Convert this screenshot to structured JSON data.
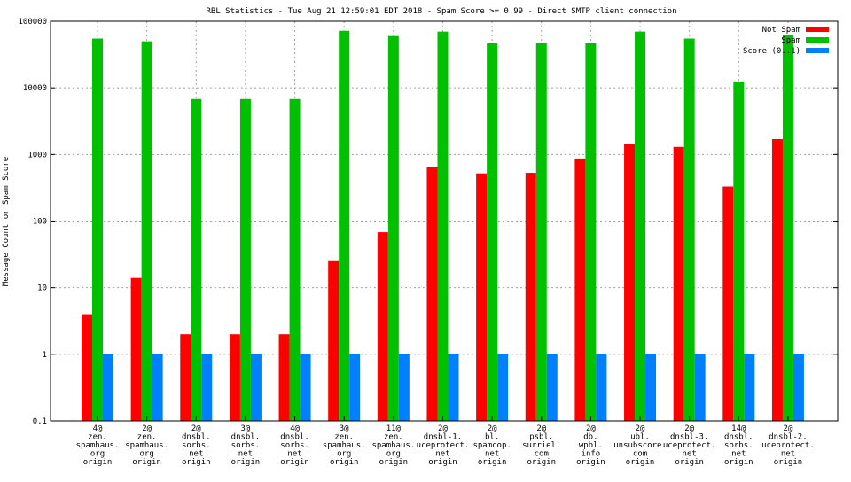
{
  "chart_data": {
    "type": "bar",
    "title": "RBL Statistics - Tue Aug 21 12:59:01 EDT 2018 - Spam Score >= 0.99 - Direct SMTP client connection",
    "xlabel": "",
    "ylabel": "Message Count or Spam Score",
    "yscale": "log",
    "ylim": [
      0.1,
      100000
    ],
    "yticks": [
      "0.1",
      "1",
      "10",
      "100",
      "1000",
      "10000",
      "100000"
    ],
    "grid": true,
    "legend_position": "top-right",
    "categories": [
      [
        "4@",
        "zen.",
        "spamhaus.",
        "org",
        "origin"
      ],
      [
        "2@",
        "zen.",
        "spamhaus.",
        "org",
        "origin"
      ],
      [
        "2@",
        "dnsbl.",
        "sorbs.",
        "net",
        "origin"
      ],
      [
        "3@",
        "dnsbl.",
        "sorbs.",
        "net",
        "origin"
      ],
      [
        "4@",
        "dnsbl.",
        "sorbs.",
        "net",
        "origin"
      ],
      [
        "3@",
        "zen.",
        "spamhaus.",
        "org",
        "origin"
      ],
      [
        "11@",
        "zen.",
        "spamhaus.",
        "org",
        "origin"
      ],
      [
        "2@",
        "dnsbl-1.",
        "uceprotect.",
        "net",
        "origin"
      ],
      [
        "2@",
        "bl.",
        "spamcop.",
        "net",
        "origin"
      ],
      [
        "2@",
        "psbl.",
        "surriel.",
        "com",
        "origin"
      ],
      [
        "2@",
        "db.",
        "wpbl.",
        "info",
        "origin"
      ],
      [
        "2@",
        "ubl.",
        "unsubscore.",
        "com",
        "origin"
      ],
      [
        "2@",
        "dnsbl-3.",
        "uceprotect.",
        "net",
        "origin"
      ],
      [
        "14@",
        "dnsbl.",
        "sorbs.",
        "net",
        "origin"
      ],
      [
        "2@",
        "dnsbl-2.",
        "uceprotect.",
        "net",
        "origin"
      ]
    ],
    "series": [
      {
        "name": "Not Spam",
        "color": "#ff0000",
        "values": [
          4,
          14,
          2,
          2,
          2,
          25,
          68,
          640,
          520,
          530,
          870,
          1420,
          1300,
          330,
          1700
        ]
      },
      {
        "name": "Spam",
        "color": "#00c000",
        "values": [
          55000,
          50000,
          6800,
          6800,
          6800,
          72000,
          60000,
          70000,
          47000,
          48000,
          48000,
          70000,
          55000,
          12500,
          62000
        ]
      },
      {
        "name": "Score (0..1)",
        "color": "#0080ff",
        "values": [
          1,
          1,
          1,
          1,
          1,
          1,
          1,
          1,
          1,
          1,
          1,
          1,
          1,
          1,
          1
        ]
      }
    ]
  }
}
